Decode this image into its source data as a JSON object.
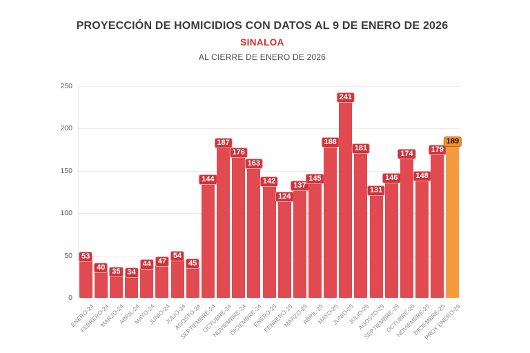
{
  "header": {
    "title": "PROYECCIÓN DE HOMICIDIOS CON DATOS AL 9 DE ENERO DE 2026",
    "subtitle": "SINALOA",
    "caption": "AL CIERRE DE ENERO DE 2026"
  },
  "colors": {
    "bar": "#e04a50",
    "bar_badge": "#ce343c",
    "bar_badge_border": "#f2a3a6",
    "highlight_bar": "#f59b3d",
    "highlight_badge": "#f0902e",
    "highlight_badge_border": "#b9691a",
    "subtitle_red": "#d42b2b",
    "grid": "#ececec",
    "axis_text": "#5f6368",
    "xlabel_text": "#8c8c8c"
  },
  "chart_data": {
    "type": "bar",
    "title": "PROYECCIÓN DE HOMICIDIOS CON DATOS AL 9 DE ENERO DE 2026",
    "subtitle": "SINALOA",
    "caption": "AL CIERRE DE ENERO DE 2026",
    "categories": [
      "ENERO-24",
      "FEBRERO-24",
      "MARZO-24",
      "ABRIL-24",
      "MAYO-24",
      "JUNIO-24",
      "JULIO-24",
      "AGOSTO-24",
      "SEPTIEMBRE-24",
      "OCTUBRE-24",
      "NOVIEMBRE-24",
      "DICIEMBRE-24",
      "ENERO-25",
      "FEBRERO-25",
      "MARZO-25",
      "ABRIL-25",
      "MAYO-25",
      "JUNIO-25",
      "JULIO-25",
      "AGOSTO-25",
      "SEPTIEMBRE-25",
      "OCTUBRE-25",
      "NOVIEMBRE-25",
      "DICIEMBRE-25",
      "PROY ENERO-26"
    ],
    "values": [
      53,
      40,
      35,
      34,
      44,
      47,
      54,
      45,
      144,
      187,
      176,
      163,
      142,
      124,
      137,
      145,
      188,
      241,
      181,
      131,
      146,
      174,
      148,
      179,
      189
    ],
    "highlight_index": 24,
    "xlabel": "",
    "ylabel": "",
    "yticks": [
      0,
      50,
      100,
      150,
      200,
      250
    ],
    "ylim": [
      0,
      250
    ],
    "grid": true,
    "legend": null,
    "data_labels": true
  }
}
